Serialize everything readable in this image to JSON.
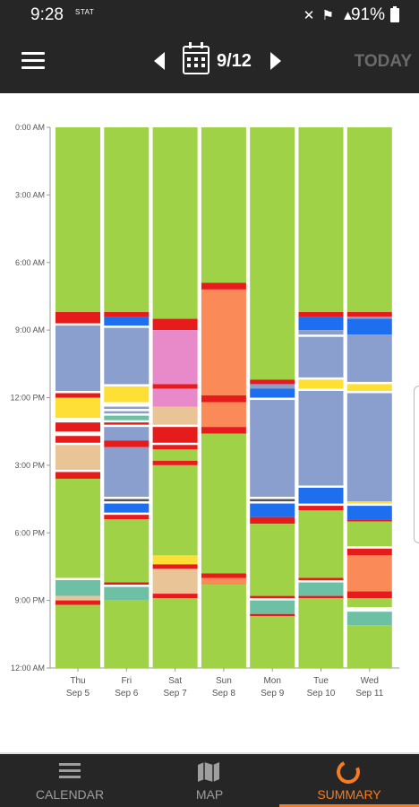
{
  "status_bar": {
    "time": "9:28",
    "carrier_tag": "STAT",
    "battery": "91%"
  },
  "toolbar": {
    "menu_icon": "hamburger-menu-icon",
    "date": "9/12",
    "today_label": "TODAY"
  },
  "colors": {
    "green": "#9fd246",
    "red": "#e61c1c",
    "blue": "#1e6ff0",
    "slate": "#8b9fce",
    "pink": "#e889ca",
    "yellow": "#fddf35",
    "tan": "#e8c496",
    "orange": "#fb8a59",
    "teal": "#6dc0a4",
    "dark": "#555555",
    "accent": "#f57c20"
  },
  "chart_data": {
    "type": "bar",
    "y_tick_labels": [
      "0:00 AM",
      "3:00 AM",
      "6:00 AM",
      "9:00 AM",
      "12:00 PM",
      "3:00 PM",
      "6:00 PM",
      "9:00 PM",
      "12:00 AM"
    ],
    "ylim_hours": [
      0,
      24
    ],
    "columns": [
      {
        "day": "Thu",
        "date": "Sep 5",
        "segments": [
          [
            "green",
            0,
            8.2
          ],
          [
            "red",
            8.2,
            8.7
          ],
          [
            "slate",
            8.8,
            11.7
          ],
          [
            "red",
            11.8,
            12
          ],
          [
            "yellow",
            12,
            12.9
          ],
          [
            "red",
            13.1,
            13.5
          ],
          [
            "red",
            13.7,
            14
          ],
          [
            "tan",
            14.1,
            15.2
          ],
          [
            "red",
            15.3,
            15.6
          ],
          [
            "green",
            15.6,
            20
          ],
          [
            "teal",
            20.1,
            20.8
          ],
          [
            "tan",
            20.8,
            21
          ],
          [
            "red",
            21,
            21.2
          ],
          [
            "green",
            21.2,
            24
          ]
        ]
      },
      {
        "day": "Fri",
        "date": "Sep 6",
        "segments": [
          [
            "green",
            0,
            8.2
          ],
          [
            "red",
            8.2,
            8.4
          ],
          [
            "blue",
            8.4,
            8.8
          ],
          [
            "slate",
            8.9,
            11.4
          ],
          [
            "yellow",
            11.5,
            12.2
          ],
          [
            "slate",
            12.4,
            12.5
          ],
          [
            "slate",
            12.6,
            12.7
          ],
          [
            "teal",
            12.8,
            13
          ],
          [
            "red",
            13.1,
            13.2
          ],
          [
            "slate",
            13.3,
            13.9
          ],
          [
            "red",
            13.9,
            14.2
          ],
          [
            "slate",
            14.2,
            16.4
          ],
          [
            "dark",
            16.5,
            16.6
          ],
          [
            "blue",
            16.7,
            17.1
          ],
          [
            "red",
            17.2,
            17.4
          ],
          [
            "green",
            17.4,
            20.2
          ],
          [
            "red",
            20.2,
            20.3
          ],
          [
            "teal",
            20.4,
            21
          ],
          [
            "green",
            21,
            24
          ]
        ]
      },
      {
        "day": "Sat",
        "date": "Sep 7",
        "segments": [
          [
            "green",
            0,
            8.5
          ],
          [
            "red",
            8.5,
            9
          ],
          [
            "pink",
            9,
            11.4
          ],
          [
            "red",
            11.4,
            11.6
          ],
          [
            "pink",
            11.6,
            12.4
          ],
          [
            "tan",
            12.4,
            13.2
          ],
          [
            "red",
            13.3,
            14
          ],
          [
            "red",
            14.1,
            14.3
          ],
          [
            "green",
            14.3,
            14.8
          ],
          [
            "red",
            14.8,
            15
          ],
          [
            "green",
            15,
            19
          ],
          [
            "yellow",
            19,
            19.4
          ],
          [
            "red",
            19.4,
            19.6
          ],
          [
            "tan",
            19.6,
            20.7
          ],
          [
            "red",
            20.7,
            20.9
          ],
          [
            "green",
            20.9,
            24
          ]
        ]
      },
      {
        "day": "Sun",
        "date": "Sep 8",
        "segments": [
          [
            "green",
            0,
            6.9
          ],
          [
            "red",
            6.9,
            7.2
          ],
          [
            "orange",
            7.2,
            11.9
          ],
          [
            "red",
            11.9,
            12.2
          ],
          [
            "orange",
            12.2,
            13.3
          ],
          [
            "red",
            13.3,
            13.6
          ],
          [
            "green",
            13.6,
            19.8
          ],
          [
            "red",
            19.8,
            20
          ],
          [
            "orange",
            20,
            20.3
          ],
          [
            "green",
            20.3,
            24
          ]
        ]
      },
      {
        "day": "Mon",
        "date": "Sep 9",
        "segments": [
          [
            "green",
            0,
            11.2
          ],
          [
            "red",
            11.2,
            11.4
          ],
          [
            "slate",
            11.4,
            11.6
          ],
          [
            "blue",
            11.6,
            12
          ],
          [
            "slate",
            12.1,
            16.4
          ],
          [
            "dark",
            16.5,
            16.6
          ],
          [
            "blue",
            16.7,
            17.3
          ],
          [
            "red",
            17.3,
            17.6
          ],
          [
            "green",
            17.6,
            20.8
          ],
          [
            "red",
            20.8,
            20.9
          ],
          [
            "teal",
            21,
            21.6
          ],
          [
            "red",
            21.6,
            21.7
          ],
          [
            "green",
            21.7,
            24
          ]
        ]
      },
      {
        "day": "Tue",
        "date": "Sep 10",
        "segments": [
          [
            "green",
            0,
            8.2
          ],
          [
            "red",
            8.2,
            8.4
          ],
          [
            "blue",
            8.4,
            9
          ],
          [
            "slate",
            9,
            9.2
          ],
          [
            "slate",
            9.3,
            11.1
          ],
          [
            "yellow",
            11.2,
            11.6
          ],
          [
            "slate",
            11.7,
            15.9
          ],
          [
            "blue",
            16,
            16.7
          ],
          [
            "red",
            16.8,
            17
          ],
          [
            "green",
            17,
            20
          ],
          [
            "red",
            20,
            20.1
          ],
          [
            "teal",
            20.2,
            20.8
          ],
          [
            "red",
            20.8,
            20.9
          ],
          [
            "green",
            20.9,
            24
          ]
        ]
      },
      {
        "day": "Wed",
        "date": "Sep 11",
        "segments": [
          [
            "green",
            0,
            8.2
          ],
          [
            "red",
            8.2,
            8.4
          ],
          [
            "slate",
            8.4,
            8.5
          ],
          [
            "blue",
            8.5,
            9.2
          ],
          [
            "slate",
            9.2,
            11.3
          ],
          [
            "yellow",
            11.4,
            11.7
          ],
          [
            "slate",
            11.8,
            16.6
          ],
          [
            "yellow",
            16.6,
            16.7
          ],
          [
            "blue",
            16.8,
            17.4
          ],
          [
            "red",
            17.4,
            17.5
          ],
          [
            "green",
            17.5,
            18.6
          ],
          [
            "red",
            18.7,
            19
          ],
          [
            "orange",
            19,
            20.6
          ],
          [
            "red",
            20.6,
            20.9
          ],
          [
            "green",
            20.9,
            21.3
          ],
          [
            "teal",
            21.5,
            22.1
          ],
          [
            "green",
            22.1,
            24
          ]
        ]
      }
    ]
  },
  "tabs": [
    {
      "label": "CALENDAR",
      "icon": "list-icon",
      "active": false
    },
    {
      "label": "MAP",
      "icon": "map-icon",
      "active": false
    },
    {
      "label": "SUMMARY",
      "icon": "summary-ring-icon",
      "active": true
    }
  ]
}
